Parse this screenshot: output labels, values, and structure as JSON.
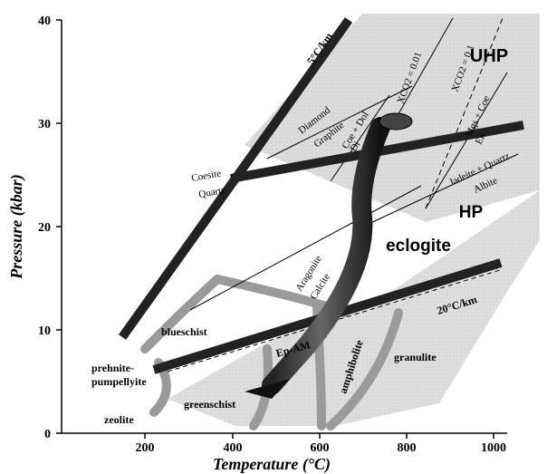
{
  "axes": {
    "x_title": "Temperature (°C)",
    "y_title": "Pressure (kbar)",
    "x_ticks": [
      "200",
      "400",
      "600",
      "800",
      "1000"
    ],
    "y_ticks": [
      "0",
      "10",
      "20",
      "30",
      "40"
    ]
  },
  "labels": {
    "uhp": "UHP",
    "hp": "HP",
    "eclogite": "eclogite",
    "gradient_low": "5°C/km",
    "gradient_high": "20°C/km",
    "coesite": "Coesite",
    "quartz": "Quartz",
    "diamond": "Diamond",
    "graphite": "Graphite",
    "coe_dol": "Coe + Dol",
    "di": "Di",
    "xco2_001": "XCO2 = 0.01",
    "xco2_01": "XCO2 = 0.1",
    "mgs_coe": "Mgs + Coe",
    "en": "En",
    "jadeite_quartz": "Jadeite + Quartz",
    "albite": "Albite",
    "aragonite": "Aragonite",
    "calcite": "Calcite",
    "blueschist": "blueschist",
    "ep_am": "Ep-AM",
    "prehnite": "prehnite-",
    "pumpellyite": "pumpellyite",
    "greenschist": "greenschist",
    "amphibolite": "amphibolite",
    "granulite": "granulite",
    "zeolite": "zeolite"
  }
}
